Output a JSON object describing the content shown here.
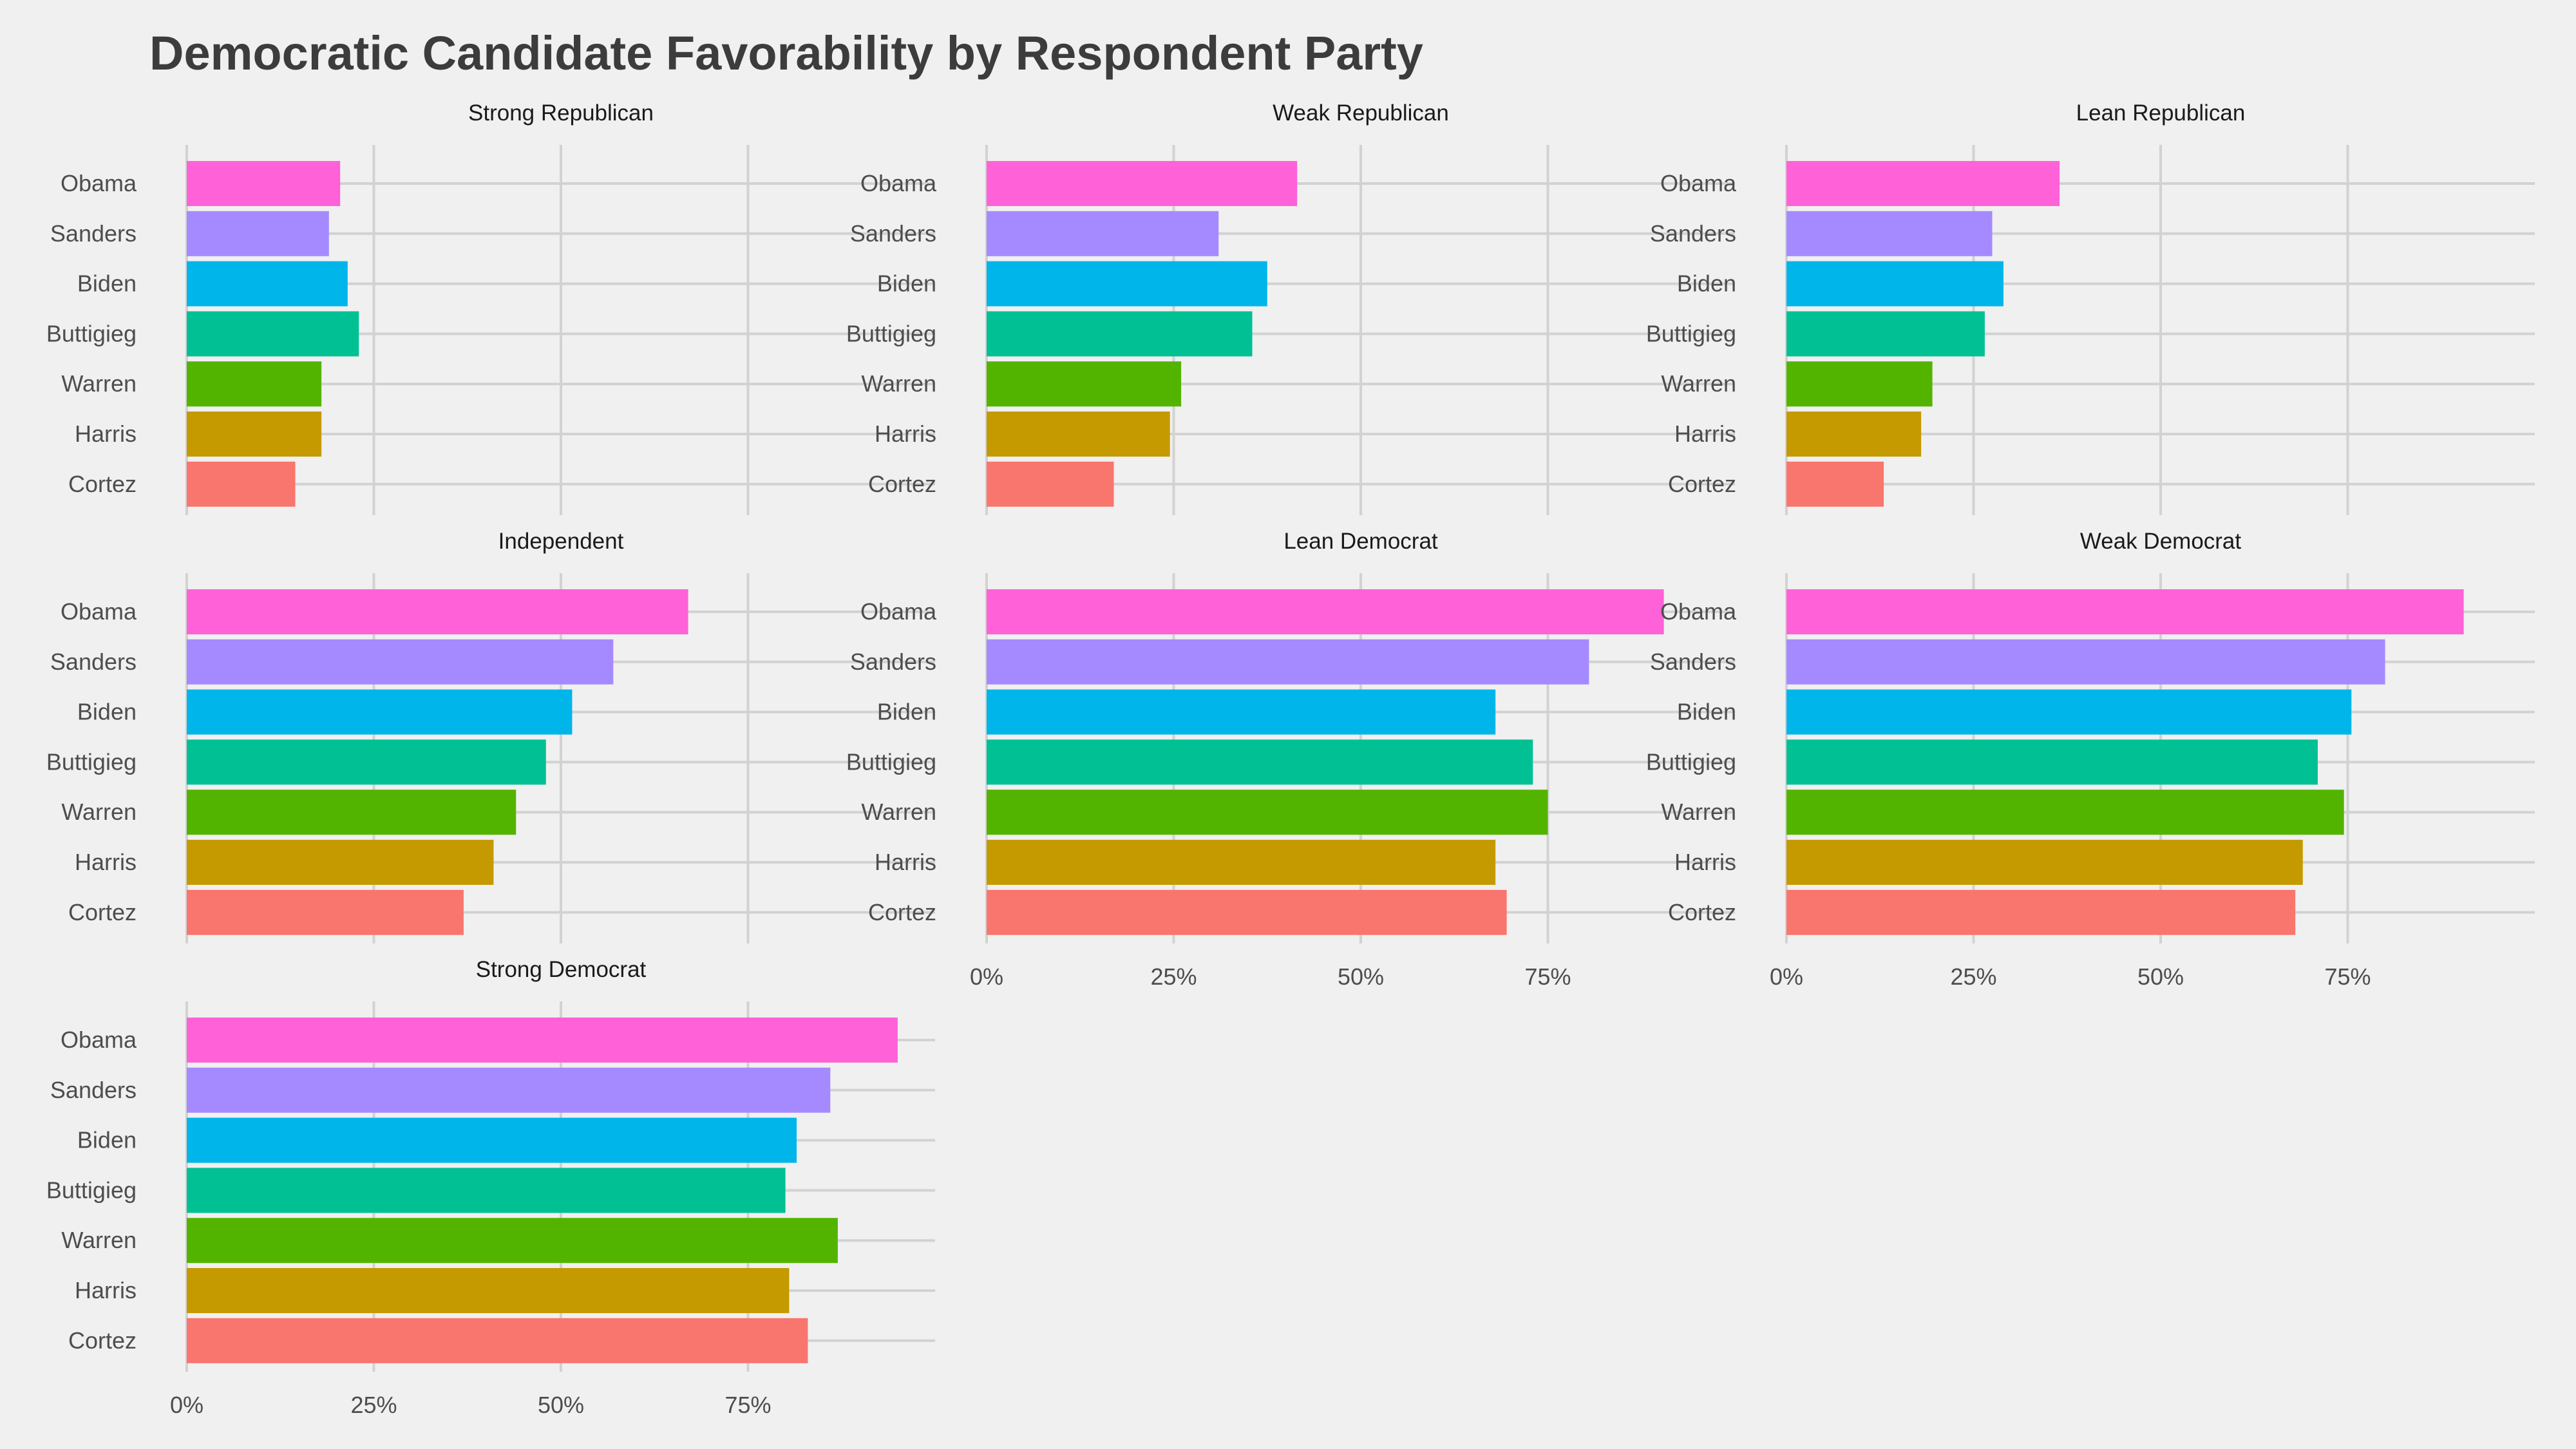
{
  "chart_data": {
    "type": "bar",
    "orientation": "horizontal",
    "title": "Democratic Candidate Favorability by Respondent Party",
    "xlabel": "",
    "ylabel": "",
    "xlim": [
      0,
      1
    ],
    "x_ticks": [
      0,
      0.25,
      0.5,
      0.75
    ],
    "x_tick_labels": [
      "0%",
      "25%",
      "50%",
      "75%"
    ],
    "grid": true,
    "legend": "none",
    "categories": [
      "Obama",
      "Sanders",
      "Biden",
      "Buttigieg",
      "Warren",
      "Harris",
      "Cortez"
    ],
    "colors": {
      "Obama": "#FF61D8",
      "Sanders": "#A58AFF",
      "Biden": "#00B5EA",
      "Buttigieg": "#00C094",
      "Warren": "#53B400",
      "Harris": "#C49A00",
      "Cortez": "#F8766D"
    },
    "panels": [
      {
        "name": "Strong Republican",
        "values": [
          0.205,
          0.19,
          0.215,
          0.23,
          0.18,
          0.18,
          0.145
        ]
      },
      {
        "name": "Weak Republican",
        "values": [
          0.415,
          0.31,
          0.375,
          0.355,
          0.26,
          0.245,
          0.17
        ]
      },
      {
        "name": "Lean Republican",
        "values": [
          0.365,
          0.275,
          0.29,
          0.265,
          0.195,
          0.18,
          0.13
        ]
      },
      {
        "name": "Independent",
        "values": [
          0.67,
          0.57,
          0.515,
          0.48,
          0.44,
          0.41,
          0.37
        ]
      },
      {
        "name": "Lean Democrat",
        "values": [
          0.905,
          0.805,
          0.68,
          0.73,
          0.75,
          0.68,
          0.695
        ]
      },
      {
        "name": "Weak Democrat",
        "values": [
          0.905,
          0.8,
          0.755,
          0.71,
          0.745,
          0.69,
          0.68
        ]
      },
      {
        "name": "Strong Democrat",
        "values": [
          0.95,
          0.86,
          0.815,
          0.8,
          0.87,
          0.805,
          0.83
        ]
      }
    ]
  }
}
